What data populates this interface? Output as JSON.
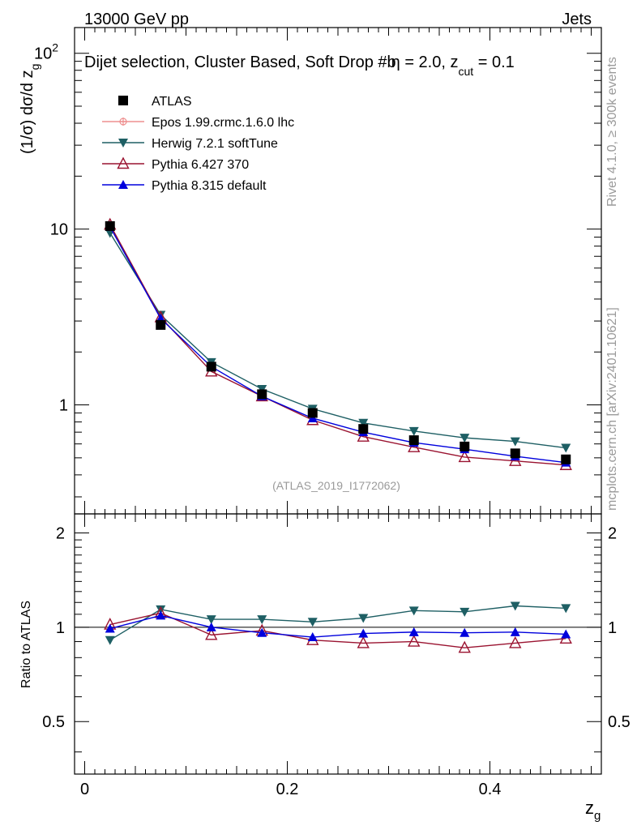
{
  "header": {
    "left": "13000 GeV pp",
    "right": "Jets",
    "subtitle_main": "Dijet selection, Cluster Based, Soft Drop #b",
    "subtitle_tail": "η = 2.0, z",
    "subtitle_sub": "cut",
    "subtitle_end": " = 0.1"
  },
  "side": {
    "rivet": "Rivet 4.1.0, ≥ 300k events",
    "mcplots": "mcplots.cern.ch [arXiv:2401.10621]"
  },
  "analysis_id": "(ATLAS_2019_I1772062)",
  "colors": {
    "atlas": "#000000",
    "epos": "#ee8f8f",
    "herwig": "#1e5f64",
    "pythia6": "#9a1330",
    "pythia8": "#0000dd"
  },
  "chart_data": [
    {
      "type": "line",
      "panel": "main",
      "ylabel": "(1/σ) dσ/d z",
      "ylabel_sub": "g",
      "yscale": "log",
      "ylim": [
        0.24,
        140
      ],
      "xlim": [
        -0.01,
        0.51
      ],
      "ytick_labels": [
        "1",
        "10",
        "10"
      ],
      "ytick_exp": "2",
      "x": [
        0.025,
        0.075,
        0.125,
        0.175,
        0.225,
        0.275,
        0.325,
        0.375,
        0.425,
        0.475
      ],
      "series": [
        {
          "name": "ATLAS",
          "key": "atlas",
          "marker": "square",
          "values": [
            10.4,
            2.85,
            1.65,
            1.15,
            0.9,
            0.73,
            0.63,
            0.58,
            0.53,
            0.49
          ]
        },
        {
          "name": "Epos 1.99.crmc.1.6.0 lhc",
          "key": "epos",
          "marker": "cross",
          "values": [
            null,
            null,
            null,
            null,
            null,
            null,
            null,
            null,
            null,
            null
          ]
        },
        {
          "name": "Herwig 7.2.1 softTune",
          "key": "herwig",
          "marker": "tri-down",
          "values": [
            9.5,
            3.25,
            1.75,
            1.23,
            0.95,
            0.79,
            0.71,
            0.65,
            0.62,
            0.57
          ]
        },
        {
          "name": "Pythia 6.427 370",
          "key": "pythia6",
          "marker": "tri-open",
          "values": [
            10.6,
            3.15,
            1.55,
            1.12,
            0.82,
            0.66,
            0.575,
            0.505,
            0.48,
            0.455
          ]
        },
        {
          "name": "Pythia 8.315 default",
          "key": "pythia8",
          "marker": "tri-up",
          "values": [
            10.3,
            3.1,
            1.65,
            1.12,
            0.84,
            0.7,
            0.61,
            0.56,
            0.51,
            0.47
          ]
        }
      ]
    },
    {
      "type": "line",
      "panel": "ratio",
      "ylabel": "Ratio to ATLAS",
      "xlabel": "z",
      "xlabel_sub": "g",
      "ylim": [
        0.34,
        2.3
      ],
      "xlim": [
        -0.01,
        0.51
      ],
      "yticks": [
        0.5,
        1,
        2
      ],
      "ytick_labels": [
        "0.5",
        "1",
        "2"
      ],
      "xticks": [
        0,
        0.2,
        0.4
      ],
      "xtick_labels": [
        "0",
        "0.2",
        "0.4"
      ],
      "x": [
        0.025,
        0.075,
        0.125,
        0.175,
        0.225,
        0.275,
        0.325,
        0.375,
        0.425,
        0.475
      ],
      "series": [
        {
          "name": "Herwig 7.2.1 softTune",
          "key": "herwig",
          "marker": "tri-down",
          "values": [
            0.91,
            1.14,
            1.06,
            1.06,
            1.04,
            1.07,
            1.13,
            1.12,
            1.17,
            1.15
          ]
        },
        {
          "name": "Pythia 6.427 370",
          "key": "pythia6",
          "marker": "tri-open",
          "values": [
            1.02,
            1.11,
            0.945,
            0.975,
            0.91,
            0.89,
            0.9,
            0.86,
            0.89,
            0.92
          ]
        },
        {
          "name": "Pythia 8.315 default",
          "key": "pythia8",
          "marker": "tri-up",
          "values": [
            0.99,
            1.09,
            1.0,
            0.96,
            0.93,
            0.955,
            0.965,
            0.96,
            0.965,
            0.95
          ]
        }
      ]
    }
  ]
}
